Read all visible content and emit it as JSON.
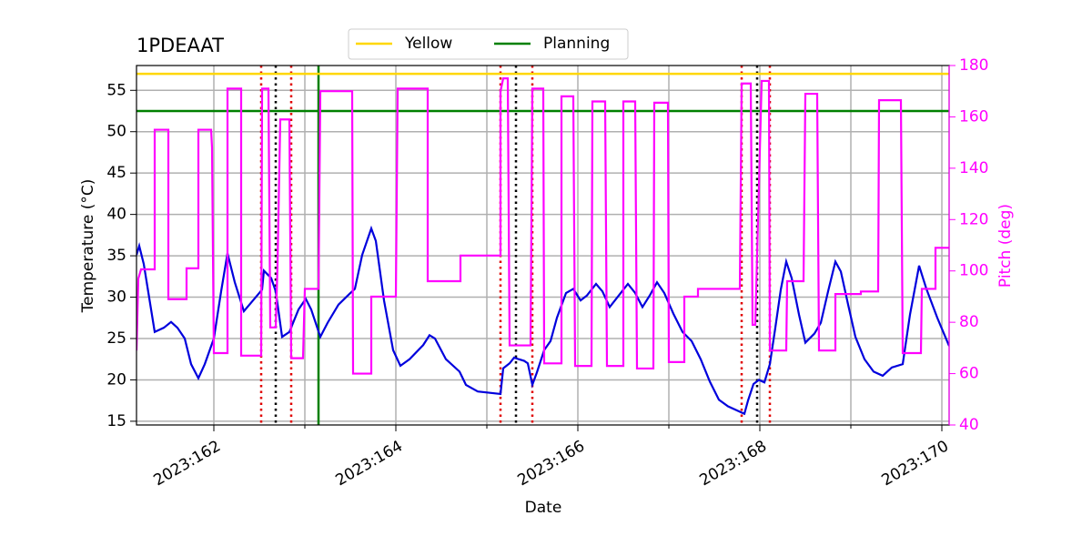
{
  "chart_data": {
    "type": "line",
    "title": "1PDEAAT",
    "xlabel": "Date",
    "ylabel": "Temperature (°C)",
    "y2label": "Pitch (deg)",
    "y2color": "#ff00ff",
    "grid": true,
    "legend": "upper center",
    "xlim": [
      161.15,
      170.08
    ],
    "xticks": [
      {
        "value": 162,
        "label": "2023:162"
      },
      {
        "value": 164,
        "label": "2023:164"
      },
      {
        "value": 166,
        "label": "2023:166"
      },
      {
        "value": 168,
        "label": "2023:168"
      },
      {
        "value": 170,
        "label": "2023:170"
      }
    ],
    "xminor_ticks": [
      163,
      165,
      167,
      169
    ],
    "ylim": [
      14.55,
      58
    ],
    "yticks": [
      15,
      20,
      25,
      30,
      35,
      40,
      45,
      50,
      55
    ],
    "y2lim": [
      40,
      180
    ],
    "y2ticks": [
      40,
      60,
      80,
      100,
      120,
      140,
      160,
      180
    ],
    "hlines": [
      {
        "name": "Yellow",
        "color": "#ffd700",
        "y": 57
      },
      {
        "name": "Planning",
        "color": "#008000",
        "y": 52.5
      }
    ],
    "vlines": [
      {
        "x": 162.52,
        "color": "#e00000",
        "style": "dotted"
      },
      {
        "x": 162.85,
        "color": "#e00000",
        "style": "dotted"
      },
      {
        "x": 165.15,
        "color": "#e00000",
        "style": "dotted"
      },
      {
        "x": 165.5,
        "color": "#e00000",
        "style": "dotted"
      },
      {
        "x": 167.8,
        "color": "#e00000",
        "style": "dotted"
      },
      {
        "x": 168.11,
        "color": "#e00000",
        "style": "dotted"
      },
      {
        "x": 162.68,
        "color": "#000000",
        "style": "dotted"
      },
      {
        "x": 165.32,
        "color": "#000000",
        "style": "dotted"
      },
      {
        "x": 167.97,
        "color": "#000000",
        "style": "dotted"
      },
      {
        "x": 163.15,
        "color": "#008000",
        "style": "solid"
      }
    ],
    "series": [
      {
        "color": "#0000dd",
        "x": [
          161.15,
          161.18,
          161.23,
          161.35,
          161.45,
          161.53,
          161.6,
          161.68,
          161.75,
          161.83,
          161.9,
          162,
          162.08,
          162.15,
          162.23,
          162.33,
          162.43,
          162.53,
          162.55,
          162.63,
          162.68,
          162.75,
          162.83,
          162.93,
          163.01,
          163.07,
          163.17,
          163.25,
          163.37,
          163.5,
          163.55,
          163.63,
          163.73,
          163.78,
          163.87,
          163.97,
          164.05,
          164.15,
          164.3,
          164.37,
          164.43,
          164.55,
          164.7,
          164.77,
          164.9,
          165.15,
          165.18,
          165.25,
          165.3,
          165.35,
          165.41,
          165.45,
          165.5,
          165.55,
          165.63,
          165.7,
          165.77,
          165.87,
          165.95,
          166.03,
          166.1,
          166.2,
          166.27,
          166.35,
          166.45,
          166.55,
          166.63,
          166.71,
          166.79,
          166.87,
          166.95,
          167.05,
          167.15,
          167.25,
          167.35,
          167.45,
          167.55,
          167.65,
          167.77,
          167.83,
          167.87,
          167.93,
          167.99,
          168.05,
          168.11,
          168.17,
          168.23,
          168.29,
          168.35,
          168.43,
          168.5,
          168.6,
          168.67,
          168.75,
          168.83,
          168.89,
          168.97,
          169.05,
          169.15,
          169.25,
          169.35,
          169.45,
          169.57,
          169.65,
          169.75,
          169.83,
          169.95,
          170.08
        ],
        "values": [
          35.1,
          36.2,
          34,
          25.8,
          26.3,
          27,
          26.3,
          25,
          21.9,
          20.2,
          21.9,
          25,
          30.7,
          35.3,
          31.8,
          28.3,
          29.6,
          30.9,
          33.2,
          32.3,
          30.7,
          25.2,
          25.8,
          28.5,
          29.8,
          28.5,
          25.2,
          26.9,
          29.1,
          30.5,
          31,
          35.1,
          38.3,
          36.8,
          29.6,
          23.6,
          21.7,
          22.5,
          24.2,
          25.4,
          25,
          22.5,
          21,
          19.4,
          18.6,
          18.3,
          21.4,
          22,
          22.7,
          22.5,
          22.3,
          22,
          19.4,
          20.9,
          23.6,
          24.7,
          27.5,
          30.5,
          31,
          29.6,
          30.2,
          31.6,
          30.7,
          28.8,
          30.2,
          31.6,
          30.5,
          28.8,
          30.2,
          31.8,
          30.5,
          28,
          25.8,
          24.7,
          22.5,
          19.8,
          17.6,
          16.8,
          16.2,
          15.9,
          17.5,
          19.5,
          20,
          19.7,
          21.9,
          26.3,
          30.9,
          34.3,
          32.3,
          27.9,
          24.5,
          25.6,
          26.9,
          30.7,
          34.3,
          33.1,
          29.1,
          25.2,
          22.5,
          21,
          20.5,
          21.5,
          21.9,
          27.9,
          33.8,
          31,
          27.5,
          24.1
        ]
      },
      {
        "color": "#ff00ff",
        "axis": "y2",
        "x": [
          161.15,
          161.17,
          161.2,
          161.35,
          161.35,
          161.5,
          161.5,
          161.7,
          161.7,
          161.83,
          161.83,
          161.97,
          161.98,
          162,
          162.15,
          162.15,
          162.3,
          162.3,
          162.52,
          162.53,
          162.6,
          162.62,
          162.68,
          162.7,
          162.73,
          162.83,
          162.85,
          162.98,
          163,
          163.15,
          163.17,
          163.52,
          163.53,
          163.73,
          163.73,
          164,
          164.02,
          164.35,
          164.35,
          164.71,
          164.71,
          165.15,
          165.15,
          165.18,
          165.23,
          165.25,
          165.48,
          165.5,
          165.62,
          165.63,
          165.82,
          165.82,
          165.95,
          165.97,
          166.15,
          166.16,
          166.3,
          166.32,
          166.5,
          166.5,
          166.63,
          166.65,
          166.83,
          166.84,
          166.99,
          167,
          167.17,
          167.17,
          167.32,
          167.32,
          167.78,
          167.8,
          167.9,
          167.92,
          167.95,
          168.02,
          168.1,
          168.11,
          168.29,
          168.3,
          168.48,
          168.5,
          168.63,
          168.65,
          168.83,
          168.83,
          169.11,
          169.11,
          169.3,
          169.31,
          169.55,
          169.57,
          169.77,
          169.78,
          169.93,
          169.93,
          170.08
        ],
        "values": [
          69,
          97,
          100.6,
          100.6,
          155,
          155,
          89,
          89,
          101,
          101,
          155,
          155,
          148,
          68,
          68,
          171,
          171,
          67,
          67,
          171,
          171,
          78,
          78,
          103,
          159,
          159,
          66,
          66,
          93,
          93,
          170,
          170,
          60,
          60,
          90,
          90,
          171,
          171,
          96,
          96,
          106,
          106,
          170,
          175,
          175,
          71,
          71,
          171,
          171,
          64,
          64,
          168,
          168,
          63,
          63,
          166,
          166,
          63,
          63,
          166,
          166,
          62,
          62,
          165.5,
          165.5,
          64.5,
          64.5,
          90,
          90,
          93,
          93,
          173,
          173,
          79,
          79,
          174,
          174,
          69,
          69,
          96,
          96,
          169,
          169,
          69,
          69,
          91,
          91,
          92,
          92,
          166.5,
          166.5,
          68,
          68,
          93,
          93,
          109,
          109
        ]
      }
    ]
  }
}
